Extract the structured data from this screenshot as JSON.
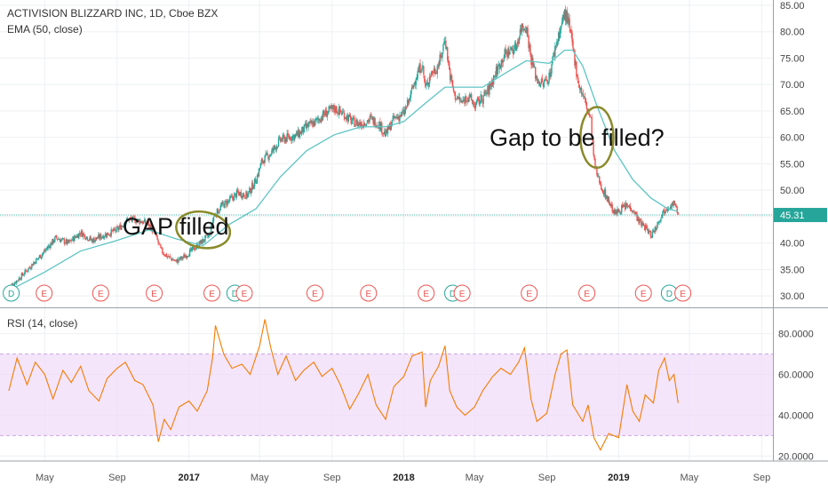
{
  "chart_data": [
    {
      "type": "candlestick",
      "title": "ACTIVISION BLIZZARD INC, 1D, Cboe BZX",
      "indicator_label": "EMA (50, close)",
      "ylim": [
        28,
        86
      ],
      "yticks": [
        30,
        35,
        40,
        45,
        50,
        55,
        60,
        65,
        70,
        75,
        80,
        85
      ],
      "ytick_labels": [
        "30.00",
        "35.00",
        "40.00",
        "45.00",
        "50.00",
        "55.00",
        "60.00",
        "65.00",
        "70.00",
        "75.00",
        "80.00",
        "85.00"
      ],
      "last_price": 45.31,
      "last_price_label": "45.31",
      "grid": true,
      "colors": {
        "up": "#26a69a",
        "down": "#ef5350",
        "ema": "#5ec4c4",
        "annotation_ellipse": "#8a8a2a",
        "price_line": "#26a69a"
      },
      "price_path": [
        [
          "2016-03-01",
          31.5
        ],
        [
          "2016-03-20",
          33.5
        ],
        [
          "2016-04-10",
          36
        ],
        [
          "2016-05-01",
          38.5
        ],
        [
          "2016-05-20",
          41
        ],
        [
          "2016-06-10",
          40
        ],
        [
          "2016-07-01",
          42
        ],
        [
          "2016-07-20",
          40.5
        ],
        [
          "2016-08-10",
          41.5
        ],
        [
          "2016-09-01",
          42.5
        ],
        [
          "2016-09-20",
          44.5
        ],
        [
          "2016-10-10",
          44.2
        ],
        [
          "2016-10-25",
          43.5
        ],
        [
          "2016-11-05",
          41.5
        ],
        [
          "2016-11-15",
          38.5
        ],
        [
          "2016-11-25",
          37.5
        ],
        [
          "2016-12-10",
          36.5
        ],
        [
          "2016-12-25",
          37.5
        ],
        [
          "2017-01-10",
          39
        ],
        [
          "2017-01-25",
          40.5
        ],
        [
          "2017-02-05",
          41.5
        ],
        [
          "2017-02-12",
          45
        ],
        [
          "2017-02-25",
          47
        ],
        [
          "2017-03-10",
          48
        ],
        [
          "2017-03-25",
          49.5
        ],
        [
          "2017-04-10",
          49
        ],
        [
          "2017-04-25",
          52
        ],
        [
          "2017-05-05",
          55.5
        ],
        [
          "2017-05-20",
          57
        ],
        [
          "2017-06-05",
          59.5
        ],
        [
          "2017-06-20",
          60
        ],
        [
          "2017-07-05",
          60.5
        ],
        [
          "2017-07-20",
          62
        ],
        [
          "2017-08-05",
          63
        ],
        [
          "2017-08-20",
          64.5
        ],
        [
          "2017-09-05",
          65.5
        ],
        [
          "2017-09-20",
          64.5
        ],
        [
          "2017-10-05",
          63
        ],
        [
          "2017-10-20",
          62.5
        ],
        [
          "2017-11-05",
          63.5
        ],
        [
          "2017-11-20",
          62.5
        ],
        [
          "2017-12-01",
          60.5
        ],
        [
          "2017-12-15",
          63.5
        ],
        [
          "2018-01-01",
          64.5
        ],
        [
          "2018-01-10",
          67
        ],
        [
          "2018-01-20",
          71
        ],
        [
          "2018-02-01",
          74
        ],
        [
          "2018-02-07",
          69
        ],
        [
          "2018-02-15",
          72
        ],
        [
          "2018-02-25",
          73
        ],
        [
          "2018-03-05",
          75
        ],
        [
          "2018-03-12",
          79
        ],
        [
          "2018-03-20",
          72
        ],
        [
          "2018-03-28",
          68
        ],
        [
          "2018-04-10",
          66.5
        ],
        [
          "2018-04-20",
          68
        ],
        [
          "2018-05-01",
          66
        ],
        [
          "2018-05-15",
          67.5
        ],
        [
          "2018-05-25",
          69
        ],
        [
          "2018-06-05",
          72
        ],
        [
          "2018-06-20",
          75.5
        ],
        [
          "2018-07-01",
          76.5
        ],
        [
          "2018-07-10",
          77
        ],
        [
          "2018-07-20",
          81
        ],
        [
          "2018-07-28",
          81
        ],
        [
          "2018-08-05",
          75
        ],
        [
          "2018-08-15",
          71
        ],
        [
          "2018-08-25",
          70
        ],
        [
          "2018-09-05",
          71.5
        ],
        [
          "2018-09-15",
          77
        ],
        [
          "2018-09-25",
          81
        ],
        [
          "2018-10-01",
          83.5
        ],
        [
          "2018-10-07",
          82
        ],
        [
          "2018-10-15",
          77
        ],
        [
          "2018-10-25",
          70
        ],
        [
          "2018-11-01",
          68
        ],
        [
          "2018-11-10",
          65
        ],
        [
          "2018-11-15",
          63
        ],
        [
          "2018-11-20",
          55.5
        ],
        [
          "2018-11-25",
          53
        ],
        [
          "2018-12-05",
          50
        ],
        [
          "2018-12-15",
          48
        ],
        [
          "2018-12-25",
          45.5
        ],
        [
          "2019-01-05",
          46.5
        ],
        [
          "2019-01-15",
          47
        ],
        [
          "2019-01-25",
          46.5
        ],
        [
          "2019-02-05",
          44
        ],
        [
          "2019-02-15",
          43
        ],
        [
          "2019-02-25",
          41.5
        ],
        [
          "2019-03-05",
          43
        ],
        [
          "2019-03-15",
          45.5
        ],
        [
          "2019-03-25",
          47
        ],
        [
          "2019-04-05",
          47.5
        ],
        [
          "2019-04-12",
          45.31
        ]
      ],
      "ema_path": [
        [
          "2016-03-01",
          31
        ],
        [
          "2016-05-01",
          34.5
        ],
        [
          "2016-07-01",
          38.5
        ],
        [
          "2016-09-01",
          40.5
        ],
        [
          "2016-10-25",
          42.5
        ],
        [
          "2016-12-10",
          40.8
        ],
        [
          "2017-01-25",
          39.5
        ],
        [
          "2017-03-10",
          43.5
        ],
        [
          "2017-04-25",
          46.5
        ],
        [
          "2017-06-05",
          52.5
        ],
        [
          "2017-07-20",
          57.5
        ],
        [
          "2017-09-05",
          60.5
        ],
        [
          "2017-10-20",
          62
        ],
        [
          "2017-12-01",
          62
        ],
        [
          "2018-01-01",
          63
        ],
        [
          "2018-02-07",
          66.5
        ],
        [
          "2018-03-12",
          69.5
        ],
        [
          "2018-04-10",
          69.5
        ],
        [
          "2018-05-15",
          69.5
        ],
        [
          "2018-06-20",
          72
        ],
        [
          "2018-07-28",
          74.5
        ],
        [
          "2018-09-05",
          74
        ],
        [
          "2018-10-01",
          76.5
        ],
        [
          "2018-10-15",
          76.5
        ],
        [
          "2018-11-01",
          73.5
        ],
        [
          "2018-11-25",
          66
        ],
        [
          "2018-12-25",
          57.5
        ],
        [
          "2019-01-25",
          52
        ],
        [
          "2019-02-25",
          48.5
        ],
        [
          "2019-03-25",
          46.5
        ],
        [
          "2019-04-12",
          46
        ]
      ],
      "event_markers": [
        {
          "date": "2016-03-05",
          "label": "D",
          "kind": "dividend"
        },
        {
          "date": "2016-04-30",
          "label": "E",
          "kind": "earnings"
        },
        {
          "date": "2016-08-04",
          "label": "E",
          "kind": "earnings"
        },
        {
          "date": "2016-11-03",
          "label": "E",
          "kind": "earnings"
        },
        {
          "date": "2017-02-09",
          "label": "E",
          "kind": "earnings"
        },
        {
          "date": "2017-03-20",
          "label": "D",
          "kind": "dividend"
        },
        {
          "date": "2017-04-05",
          "label": "E",
          "kind": "earnings"
        },
        {
          "date": "2017-08-03",
          "label": "E",
          "kind": "earnings"
        },
        {
          "date": "2017-11-02",
          "label": "E",
          "kind": "earnings"
        },
        {
          "date": "2018-02-08",
          "label": "E",
          "kind": "earnings"
        },
        {
          "date": "2018-03-25",
          "label": "D",
          "kind": "dividend"
        },
        {
          "date": "2018-04-10",
          "label": "E",
          "kind": "earnings"
        },
        {
          "date": "2018-08-02",
          "label": "E",
          "kind": "earnings"
        },
        {
          "date": "2018-11-08",
          "label": "E",
          "kind": "earnings"
        },
        {
          "date": "2019-02-12",
          "label": "E",
          "kind": "earnings"
        },
        {
          "date": "2019-03-28",
          "label": "D",
          "kind": "dividend"
        },
        {
          "date": "2019-04-20",
          "label": "E",
          "kind": "earnings"
        }
      ],
      "annotations": [
        {
          "text": "GAP filled",
          "date": "2017-01-01",
          "value": 43.5,
          "ellipse_center": [
            "2017-01-25",
            42.5
          ],
          "ellipse_span_days": 46,
          "ellipse_height": 6.8
        },
        {
          "text": "Gap to be filled?",
          "date": "2018-09-05",
          "value": 60,
          "ellipse_center": [
            "2018-11-25",
            60
          ],
          "ellipse_span_days": 28,
          "ellipse_height": 11.5
        }
      ]
    },
    {
      "type": "line",
      "title": "RSI (14, close)",
      "ylim": [
        18,
        92
      ],
      "yticks": [
        20,
        40,
        60,
        80
      ],
      "ytick_labels": [
        "20.0000",
        "40.0000",
        "60.0000",
        "80.0000"
      ],
      "bands": [
        30,
        70
      ],
      "colors": {
        "line": "#f57c00",
        "band_fill": "#f0dcfa",
        "band_edge": "#c9a8e0"
      },
      "rsi_path": [
        [
          "2016-03-01",
          52
        ],
        [
          "2016-03-15",
          68
        ],
        [
          "2016-04-01",
          55
        ],
        [
          "2016-04-15",
          66
        ],
        [
          "2016-05-01",
          60
        ],
        [
          "2016-05-15",
          48
        ],
        [
          "2016-06-01",
          62
        ],
        [
          "2016-06-15",
          56
        ],
        [
          "2016-07-01",
          64
        ],
        [
          "2016-07-15",
          52
        ],
        [
          "2016-08-01",
          47
        ],
        [
          "2016-08-15",
          58
        ],
        [
          "2016-09-01",
          63
        ],
        [
          "2016-09-15",
          66
        ],
        [
          "2016-10-01",
          57
        ],
        [
          "2016-10-15",
          55
        ],
        [
          "2016-11-01",
          45
        ],
        [
          "2016-11-10",
          27
        ],
        [
          "2016-11-20",
          38
        ],
        [
          "2016-12-01",
          33
        ],
        [
          "2016-12-15",
          44
        ],
        [
          "2017-01-01",
          47
        ],
        [
          "2017-01-15",
          42
        ],
        [
          "2017-02-01",
          52
        ],
        [
          "2017-02-10",
          68
        ],
        [
          "2017-02-15",
          84
        ],
        [
          "2017-03-01",
          70
        ],
        [
          "2017-03-15",
          63
        ],
        [
          "2017-04-01",
          65
        ],
        [
          "2017-04-15",
          60
        ],
        [
          "2017-05-01",
          74
        ],
        [
          "2017-05-10",
          87
        ],
        [
          "2017-05-20",
          73
        ],
        [
          "2017-06-01",
          60
        ],
        [
          "2017-06-15",
          69
        ],
        [
          "2017-07-01",
          57
        ],
        [
          "2017-07-15",
          62
        ],
        [
          "2017-08-01",
          66
        ],
        [
          "2017-08-15",
          59
        ],
        [
          "2017-09-01",
          63
        ],
        [
          "2017-09-15",
          55
        ],
        [
          "2017-10-01",
          43
        ],
        [
          "2017-10-15",
          50
        ],
        [
          "2017-11-01",
          60
        ],
        [
          "2017-11-15",
          45
        ],
        [
          "2017-12-01",
          38
        ],
        [
          "2017-12-15",
          54
        ],
        [
          "2018-01-01",
          59
        ],
        [
          "2018-01-15",
          69
        ],
        [
          "2018-02-01",
          71
        ],
        [
          "2018-02-07",
          44
        ],
        [
          "2018-02-15",
          57
        ],
        [
          "2018-03-01",
          64
        ],
        [
          "2018-03-12",
          74
        ],
        [
          "2018-03-20",
          52
        ],
        [
          "2018-04-01",
          44
        ],
        [
          "2018-04-15",
          40
        ],
        [
          "2018-05-01",
          44
        ],
        [
          "2018-05-15",
          52
        ],
        [
          "2018-06-01",
          59
        ],
        [
          "2018-06-15",
          63
        ],
        [
          "2018-07-01",
          60
        ],
        [
          "2018-07-15",
          66
        ],
        [
          "2018-07-25",
          73
        ],
        [
          "2018-08-05",
          48
        ],
        [
          "2018-08-15",
          37
        ],
        [
          "2018-09-01",
          41
        ],
        [
          "2018-09-15",
          60
        ],
        [
          "2018-09-25",
          70
        ],
        [
          "2018-10-05",
          72
        ],
        [
          "2018-10-15",
          45
        ],
        [
          "2018-11-01",
          37
        ],
        [
          "2018-11-10",
          45
        ],
        [
          "2018-11-20",
          29
        ],
        [
          "2018-12-01",
          23
        ],
        [
          "2018-12-15",
          31
        ],
        [
          "2019-01-01",
          29
        ],
        [
          "2019-01-15",
          55
        ],
        [
          "2019-01-25",
          42
        ],
        [
          "2019-02-05",
          37
        ],
        [
          "2019-02-15",
          50
        ],
        [
          "2019-03-01",
          46
        ],
        [
          "2019-03-10",
          62
        ],
        [
          "2019-03-20",
          68
        ],
        [
          "2019-03-28",
          57
        ],
        [
          "2019-04-05",
          60
        ],
        [
          "2019-04-12",
          46
        ]
      ]
    }
  ],
  "x_axis": {
    "start": "2016-02-15",
    "end": "2019-09-20",
    "ticks": [
      {
        "date": "2016-05-01",
        "label": "May",
        "bold": false
      },
      {
        "date": "2016-09-01",
        "label": "Sep",
        "bold": false
      },
      {
        "date": "2017-01-01",
        "label": "2017",
        "bold": true
      },
      {
        "date": "2017-05-01",
        "label": "May",
        "bold": false
      },
      {
        "date": "2017-09-01",
        "label": "Sep",
        "bold": false
      },
      {
        "date": "2018-01-01",
        "label": "2018",
        "bold": true
      },
      {
        "date": "2018-05-01",
        "label": "May",
        "bold": false
      },
      {
        "date": "2018-09-01",
        "label": "Sep",
        "bold": false
      },
      {
        "date": "2019-01-01",
        "label": "2019",
        "bold": true
      },
      {
        "date": "2019-05-01",
        "label": "May",
        "bold": false
      },
      {
        "date": "2019-09-01",
        "label": "Sep",
        "bold": false
      }
    ]
  }
}
